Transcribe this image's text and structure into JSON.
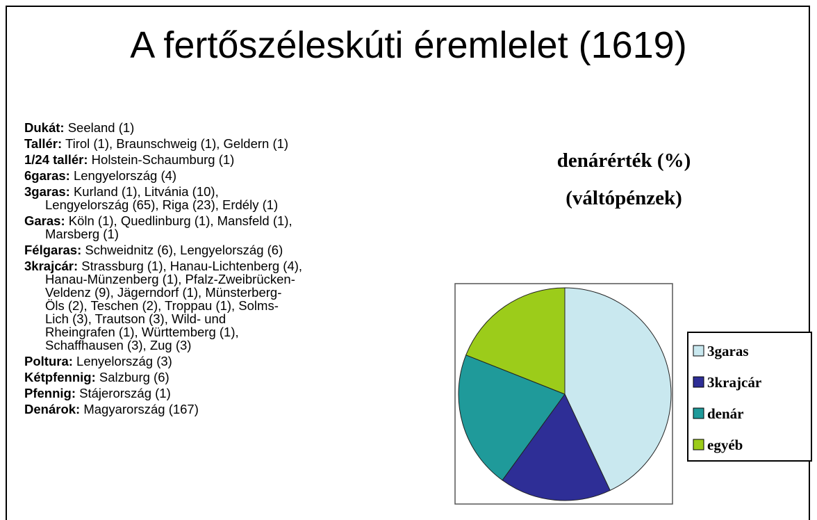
{
  "slide": {
    "title": "A fertőszéleskúti éremlelet (1619)",
    "items": [
      {
        "label": "Dukát:",
        "lines": [
          "Seeland (1)"
        ]
      },
      {
        "label": "Tallér:",
        "lines": [
          "Tirol (1), Braunschweig (1), Geldern (1)"
        ]
      },
      {
        "label": "1/24 tallér:",
        "lines": [
          "Holstein-Schaumburg (1)"
        ]
      },
      {
        "label": "6garas:",
        "lines": [
          "Lengyelország (4)"
        ]
      },
      {
        "label": "3garas:",
        "lines": [
          "Kurland (1), Litvánia (10),",
          "Lengyelország (65), Riga (23), Erdély (1)"
        ]
      },
      {
        "label": "Garas:",
        "lines": [
          "Köln (1), Quedlinburg (1), Mansfeld (1),",
          "Marsberg (1)"
        ]
      },
      {
        "label": "Félgaras:",
        "lines": [
          "Schweidnitz (6), Lengyelország (6)"
        ]
      },
      {
        "label": "3krajcár:",
        "lines": [
          "Strassburg (1), Hanau-Lichtenberg (4),",
          "Hanau-Münzenberg (1), Pfalz-Zweibrücken-",
          "Veldenz (9), Jägerndorf (1), Münsterberg-",
          "Öls (2), Teschen (2), Troppau (1), Solms-",
          "Lich (3), Trautson (3), Wild- und",
          "Rheingrafen (1), Württemberg (1),",
          "Schaffhausen (3), Zug (3)"
        ]
      },
      {
        "label": "Poltura:",
        "lines": [
          "Lenyelország (3)"
        ]
      },
      {
        "label": "Kétpfennig:",
        "lines": [
          "Salzburg (6)"
        ]
      },
      {
        "label": "Pfennig:",
        "lines": [
          "Stájerország (1)"
        ]
      },
      {
        "label": "Denárok:",
        "lines": [
          "Magyarország (167)"
        ]
      }
    ]
  },
  "chart_data": {
    "type": "pie",
    "title": "denárérték (%)",
    "subtitle": "(váltópénzek)",
    "categories": [
      "3garas",
      "3krajcár",
      "denár",
      "egyéb"
    ],
    "values": [
      43,
      17,
      21,
      19
    ],
    "colors": [
      "#c9e8ef",
      "#2e2e96",
      "#1f9a9a",
      "#9ccc1a"
    ],
    "legend": "right"
  }
}
